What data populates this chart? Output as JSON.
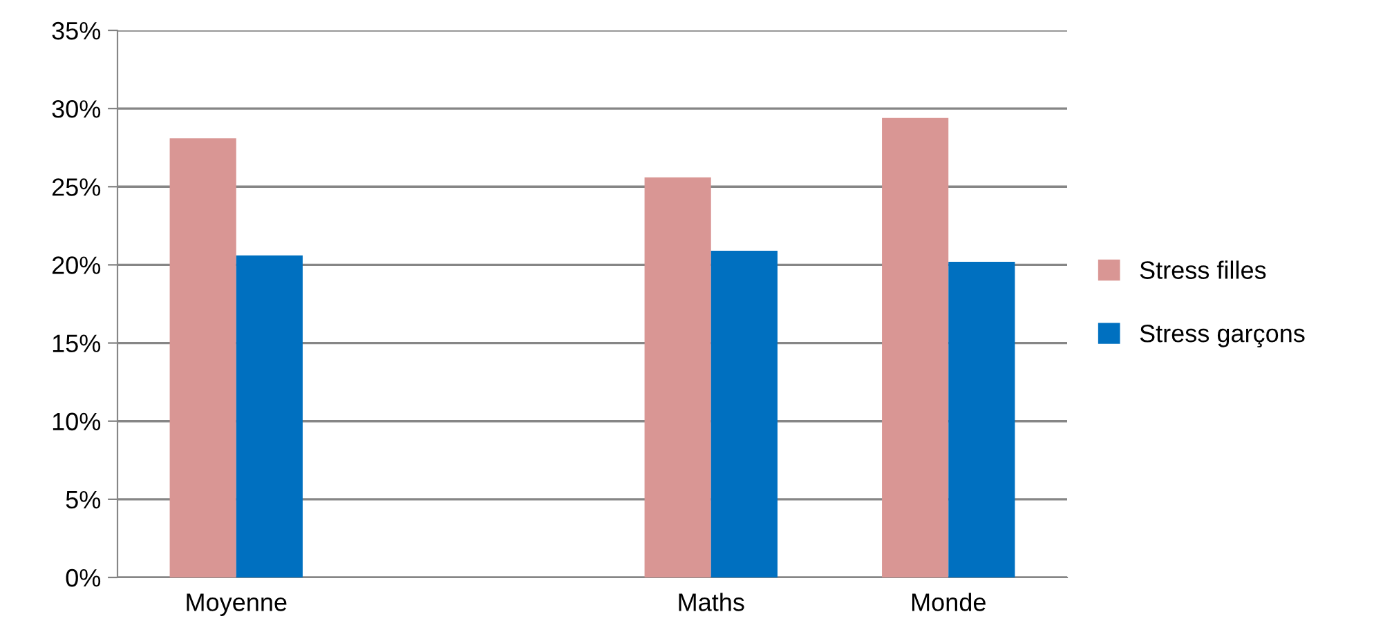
{
  "chart_data": {
    "type": "bar",
    "categories": [
      "Moyenne",
      null,
      "Maths",
      "Monde"
    ],
    "series": [
      {
        "name": "Stress filles",
        "color": "#d99694",
        "values": [
          28.1,
          null,
          25.6,
          29.4
        ]
      },
      {
        "name": "Stress garçons",
        "color": "#0070c0",
        "values": [
          20.6,
          null,
          20.9,
          20.2
        ]
      }
    ],
    "ylim": [
      0,
      35
    ],
    "yticks": [
      {
        "value": 0,
        "label": "0%"
      },
      {
        "value": 5,
        "label": "5%"
      },
      {
        "value": 10,
        "label": "10%"
      },
      {
        "value": 15,
        "label": "15%"
      },
      {
        "value": 20,
        "label": "20%"
      },
      {
        "value": 25,
        "label": "25%"
      },
      {
        "value": 30,
        "label": "30%"
      },
      {
        "value": 35,
        "label": "35%"
      }
    ],
    "grid": "y",
    "legend": "right"
  }
}
